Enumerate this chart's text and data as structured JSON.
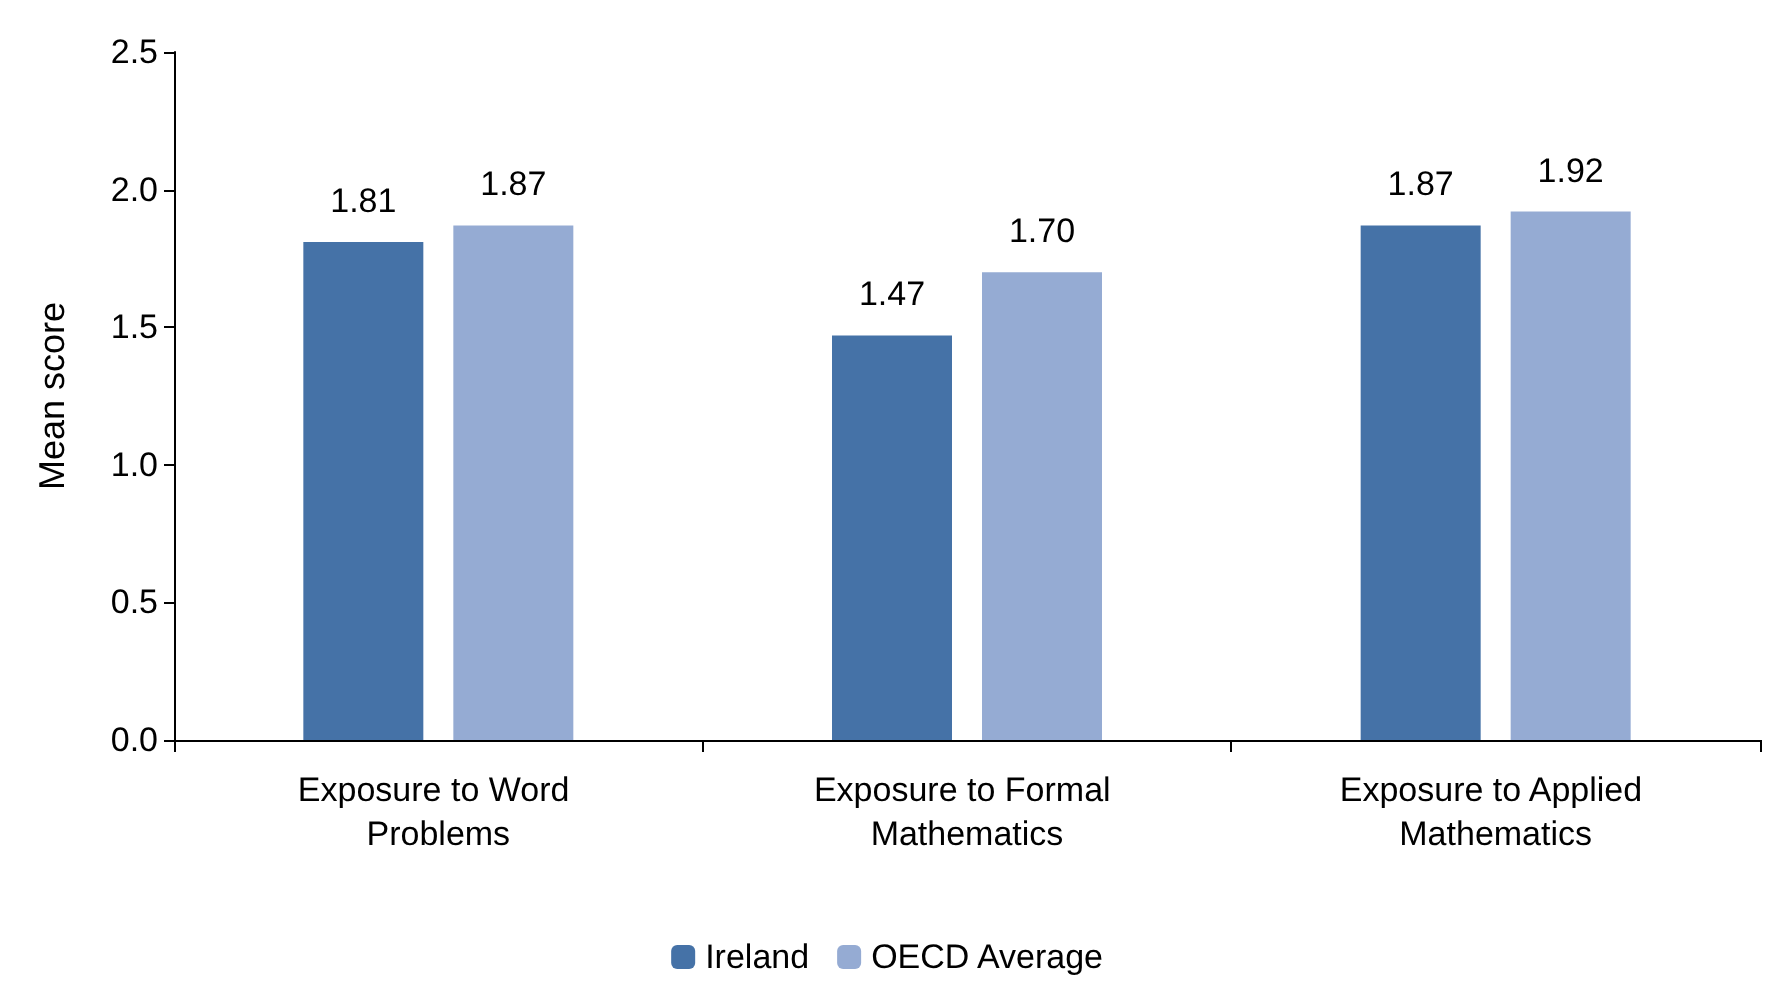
{
  "chart_data": {
    "type": "bar",
    "ylabel": "Mean score",
    "categories": [
      "Exposure to Word Problems",
      "Exposure to Formal Mathematics",
      "Exposure to Applied Mathematics"
    ],
    "series": [
      {
        "name": "Ireland",
        "color": "#4572a7",
        "values": [
          1.81,
          1.47,
          1.87
        ],
        "value_labels": [
          "1.81",
          "1.47",
          "1.87"
        ]
      },
      {
        "name": "OECD Average",
        "color": "#95abd3",
        "values": [
          1.87,
          1.7,
          1.92
        ],
        "value_labels": [
          "1.87",
          "1.70",
          "1.92"
        ]
      }
    ],
    "ylim": [
      0,
      2.5
    ],
    "yticks": [
      {
        "value": 0,
        "label": "0.0"
      },
      {
        "value": 0.5,
        "label": "0.5"
      },
      {
        "value": 1,
        "label": "1.0"
      },
      {
        "value": 1.5,
        "label": "1.5"
      },
      {
        "value": 2,
        "label": "2.0"
      },
      {
        "value": 2.5,
        "label": "2.5"
      }
    ],
    "grid": false,
    "legend": "bottom"
  }
}
